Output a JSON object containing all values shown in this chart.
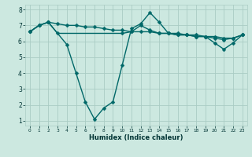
{
  "xlabel": "Humidex (Indice chaleur)",
  "ylabel": "",
  "xlim": [
    -0.5,
    23.5
  ],
  "ylim": [
    0.7,
    8.3
  ],
  "yticks": [
    1,
    2,
    3,
    4,
    5,
    6,
    7,
    8
  ],
  "xticks": [
    0,
    1,
    2,
    3,
    4,
    5,
    6,
    7,
    8,
    9,
    10,
    11,
    12,
    13,
    14,
    15,
    16,
    17,
    18,
    19,
    20,
    21,
    22,
    23
  ],
  "bg_color": "#cce8e0",
  "grid_color": "#aaccc4",
  "line_color": "#006868",
  "line_width": 1.0,
  "marker": "D",
  "marker_size": 2.5,
  "series": [
    {
      "x": [
        0,
        1,
        2,
        4,
        5,
        6,
        7,
        8,
        9,
        10,
        11,
        12,
        13,
        14,
        15,
        16,
        17,
        18,
        19,
        20,
        21,
        22,
        23
      ],
      "y": [
        6.6,
        7.0,
        7.2,
        5.8,
        4.0,
        2.2,
        1.1,
        1.8,
        2.2,
        4.5,
        6.8,
        7.1,
        7.8,
        7.2,
        6.5,
        6.5,
        6.4,
        6.3,
        6.3,
        5.9,
        5.5,
        5.9,
        6.4
      ]
    },
    {
      "x": [
        0,
        1,
        2,
        3,
        10,
        11,
        12,
        13,
        14,
        15,
        16,
        17,
        18,
        19,
        20,
        21,
        22,
        23
      ],
      "y": [
        6.6,
        7.0,
        7.2,
        6.5,
        6.5,
        6.6,
        7.0,
        6.7,
        6.5,
        6.5,
        6.4,
        6.4,
        6.3,
        6.3,
        6.2,
        6.1,
        6.2,
        6.4
      ]
    },
    {
      "x": [
        0,
        1,
        2,
        3,
        4,
        5,
        6,
        7,
        8,
        9,
        10,
        11,
        12,
        13,
        14,
        15,
        16,
        17,
        18,
        19,
        20,
        21,
        22,
        23
      ],
      "y": [
        6.6,
        7.0,
        7.2,
        7.1,
        7.0,
        7.0,
        6.9,
        6.9,
        6.8,
        6.7,
        6.7,
        6.6,
        6.6,
        6.6,
        6.5,
        6.5,
        6.4,
        6.4,
        6.4,
        6.3,
        6.3,
        6.2,
        6.2,
        6.4
      ]
    }
  ]
}
